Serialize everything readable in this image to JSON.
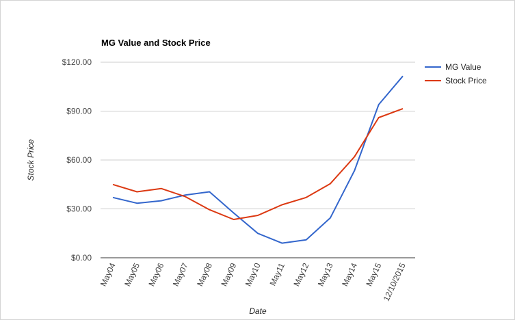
{
  "chart_data": {
    "type": "line",
    "title": "MG Value and Stock Price",
    "xlabel": "Date",
    "ylabel": "Stock Price",
    "categories": [
      "May04",
      "May05",
      "May06",
      "May07",
      "May08",
      "May09",
      "May10",
      "May11",
      "May12",
      "May13",
      "May14",
      "May15",
      "12/10/2015"
    ],
    "ylim": [
      0,
      120
    ],
    "yticks": [
      0,
      30,
      60,
      90,
      120
    ],
    "ytick_labels": [
      "$0.00",
      "$30.00",
      "$60.00",
      "$90.00",
      "$120.00"
    ],
    "grid": true,
    "legend_position": "right",
    "series": [
      {
        "name": "MG Value",
        "color": "#3366cc",
        "values": [
          37.0,
          33.5,
          35.0,
          38.5,
          40.5,
          27.5,
          15.0,
          9.0,
          11.0,
          24.5,
          53.5,
          94.0,
          111.5
        ]
      },
      {
        "name": "Stock Price",
        "color": "#dc3912",
        "values": [
          45.0,
          40.5,
          42.5,
          37.5,
          29.5,
          23.5,
          26.0,
          32.5,
          37.0,
          45.5,
          62.0,
          86.0,
          91.5
        ]
      }
    ]
  }
}
